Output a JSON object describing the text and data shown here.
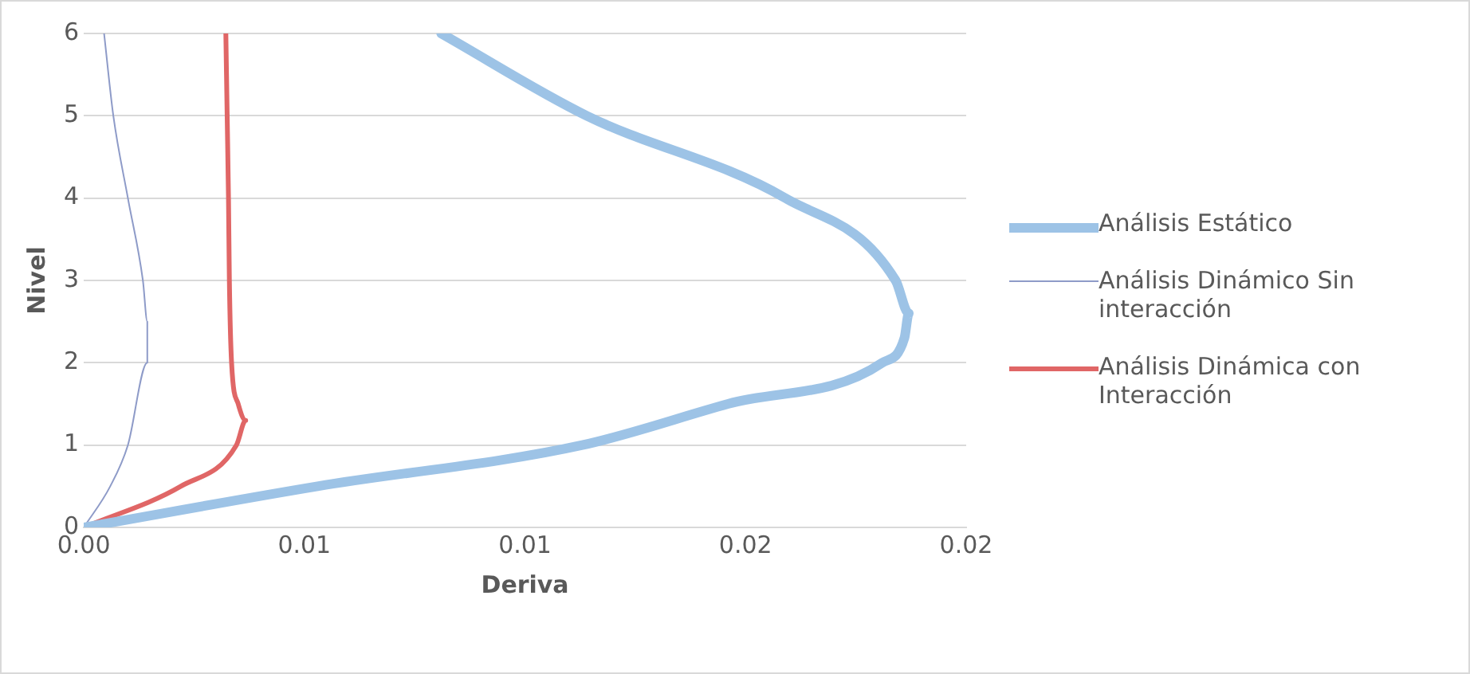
{
  "chart_data": {
    "type": "line",
    "xlabel": "Deriva",
    "ylabel": "Nivel",
    "xlim": [
      0,
      0.02
    ],
    "xticks": [
      {
        "value": 0,
        "label": "0.00"
      },
      {
        "value": 0.005,
        "label": "0.01"
      },
      {
        "value": 0.01,
        "label": "0.01"
      },
      {
        "value": 0.015,
        "label": "0.02"
      },
      {
        "value": 0.02,
        "label": "0.02"
      }
    ],
    "ylim": [
      0,
      6
    ],
    "yticks": [
      0,
      1,
      2,
      3,
      4,
      5,
      6
    ],
    "grid": "y",
    "legend": "right",
    "marker": "none",
    "line_style": "solid",
    "series": [
      {
        "name": "Análisis Estático",
        "color": "#9dc3e6",
        "x": [
          0,
          0.0053,
          0.0113,
          0.0146,
          0.0181,
          0.0186,
          0.0187,
          0.0184,
          0.0159,
          0.0114,
          0.0081
        ],
        "values": [
          0,
          0.5,
          1,
          1.5,
          2,
          2.3,
          2.6,
          3,
          4,
          5,
          6
        ]
      },
      {
        "name": "Análisis Dinámico Sin interacción",
        "color": "#8e9bc8",
        "x": [
          0,
          0.0006,
          0.001,
          0.00144,
          0.00144,
          0.00134,
          0.001,
          0.00067,
          0.00046
        ],
        "values": [
          0,
          0.5,
          1,
          2,
          2.5,
          3,
          4,
          5,
          6
        ]
      },
      {
        "name": "Análisis Dinámica con Interacción",
        "color": "#e06666",
        "x": [
          0,
          0.0022,
          0.00346,
          0.00367,
          0.0035,
          0.00335,
          0.0033,
          0.00328,
          0.00325,
          0.00322
        ],
        "values": [
          0,
          0.5,
          1,
          1.3,
          1.5,
          2,
          3,
          4,
          5,
          6
        ]
      }
    ]
  }
}
